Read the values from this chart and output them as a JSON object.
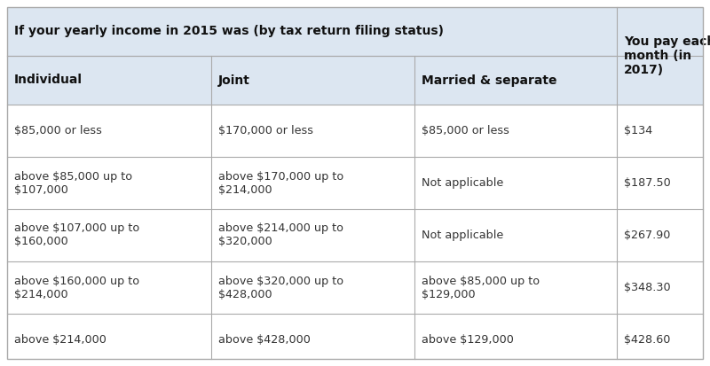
{
  "title_row": "If your yearly income in 2015 was (by tax return filing status)",
  "last_col_header": "You pay each\nmonth (in\n2017)",
  "col_headers": [
    "Individual",
    "Joint",
    "Married & separate"
  ],
  "rows": [
    [
      "$85,000 or less",
      "$170,000 or less",
      "$85,000 or less",
      "$134"
    ],
    [
      "above $85,000 up to\n$107,000",
      "above $170,000 up to\n$214,000",
      "Not applicable",
      "$187.50"
    ],
    [
      "above $107,000 up to\n$160,000",
      "above $214,000 up to\n$320,000",
      "Not applicable",
      "$267.90"
    ],
    [
      "above $160,000 up to\n$214,000",
      "above $320,000 up to\n$428,000",
      "above $85,000 up to\n$129,000",
      "$348.30"
    ],
    [
      "above $214,000",
      "above $428,000",
      "above $129,000",
      "$428.60"
    ]
  ],
  "header_bg": "#dce6f1",
  "white_bg": "#ffffff",
  "border_color": "#aaaaaa",
  "text_color": "#333333",
  "header_text_color": "#111111",
  "payment_color": "#333333",
  "fig_width": 8.0,
  "fig_height": 4.13,
  "font_size": 9.2,
  "header_font_size": 10.0
}
